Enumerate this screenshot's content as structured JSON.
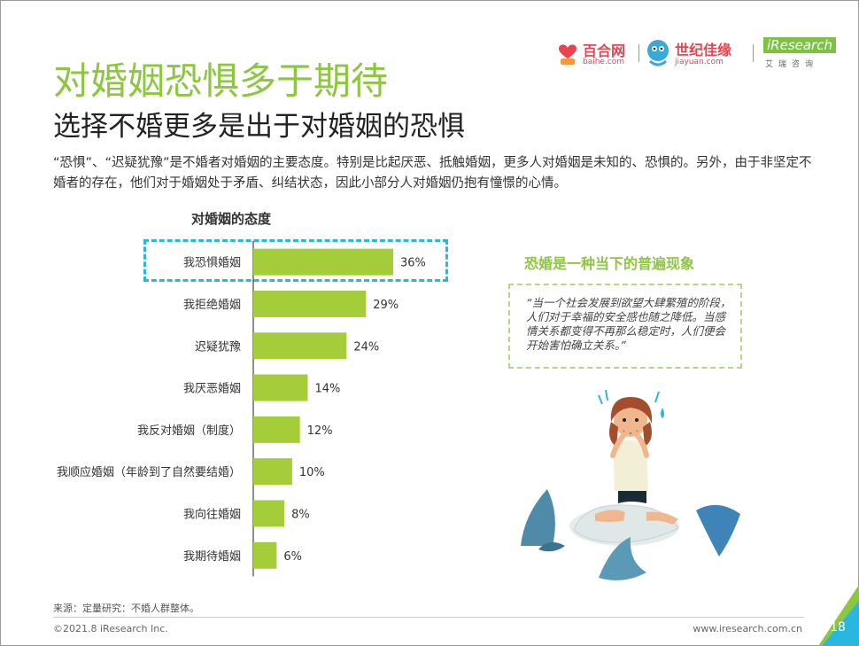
{
  "header": {
    "title": "对婚姻恐惧多于期待",
    "subtitle": "选择不婚更多是出于对婚姻的恐惧",
    "logos": {
      "baihe_name": "百合网",
      "baihe_url": "baihe.com",
      "jiayuan_name": "世纪佳缘",
      "jiayuan_url": "jiayuan.com",
      "iresearch_name": "iResearch",
      "iresearch_cn": "艾瑞咨询"
    }
  },
  "intro": "“恐惧”、“迟疑犹豫”是不婚者对婚姻的主要态度。特别是比起厌恶、抵触婚姻，更多人对婚姻是未知的、恐惧的。另外，由于非坚定不婚者的存在，他们对于婚姻处于矛盾、纠结状态，因此小部分人对婚姻仍抱有憧憬的心情。",
  "chart_data": {
    "type": "bar",
    "orientation": "horizontal",
    "title": "对婚姻的态度",
    "categories": [
      "我恐惧婚姻",
      "我拒绝婚姻",
      "迟疑犹豫",
      "我厌恶婚姻",
      "我反对婚姻（制度）",
      "我顺应婚姻（年龄到了自然要结婚）",
      "我向往婚姻",
      "我期待婚姻"
    ],
    "values": [
      36,
      29,
      24,
      14,
      12,
      10,
      8,
      6
    ],
    "value_labels": [
      "36%",
      "29%",
      "24%",
      "14%",
      "12%",
      "10%",
      "8%",
      "6%"
    ],
    "unit": "%",
    "xlim": [
      0,
      40
    ],
    "bar_color": "#a5cd39",
    "highlight_index": 0,
    "highlight_color": "#29b6e0",
    "grid": false,
    "legend": "none"
  },
  "side": {
    "title": "恐婚是一种当下的普遍现象",
    "quote": "“当一个社会发展到欲望大肆繁殖的阶段，人们对于幸福的安全感也随之降低。当感情关系都变得不再那么稳定时，人们便会开始害怕确立关系。”"
  },
  "footer": {
    "source": "来源：定量研究：不婚人群整体。",
    "copyright": "©2021.8 iResearch Inc.",
    "website": "www.iresearch.com.cn",
    "page_number": "18"
  },
  "colors": {
    "accent_green": "#8dc63f",
    "accent_blue": "#29b6e0",
    "brand_red": "#e8434f"
  },
  "icons": {
    "illustration": "worried-woman-with-sharks-illustration"
  }
}
